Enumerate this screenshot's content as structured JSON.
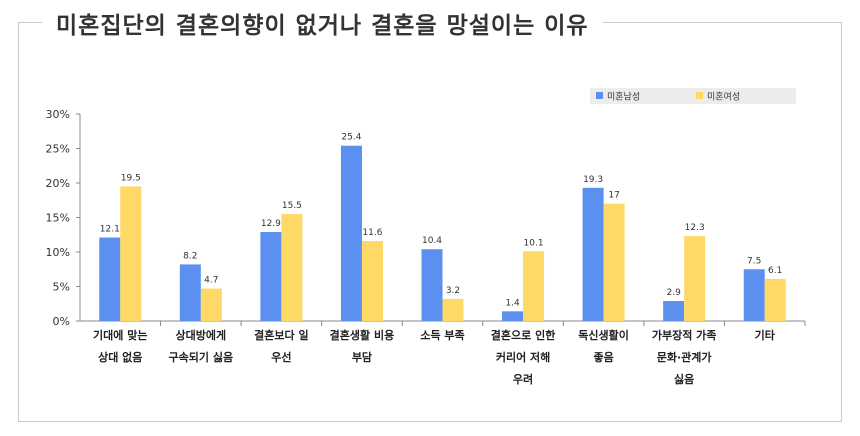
{
  "title": "미혼집단의 결혼의향이 없거나 결혼을 망설이는 이유",
  "chart_data": {
    "type": "bar",
    "title": "미혼집단의 결혼의향이 없거나 결혼을 망설이는 이유",
    "categories": [
      [
        "기대에 맞는",
        "상대 없음"
      ],
      [
        "상대방에게",
        "구속되기 싫음"
      ],
      [
        "결혼보다 일",
        "우선"
      ],
      [
        "결혼생활 비용",
        "부담"
      ],
      [
        "소득 부족"
      ],
      [
        "결혼으로 인한",
        "커리어 저해",
        "우려"
      ],
      [
        "독신생활이",
        "좋음"
      ],
      [
        "가부장적 가족",
        "문화·관계가",
        "싫음"
      ],
      [
        "기타"
      ]
    ],
    "series": [
      {
        "name": "미혼남성",
        "color": "#5b8ff0",
        "values": [
          12.1,
          8.2,
          12.9,
          25.4,
          10.4,
          1.4,
          19.3,
          2.9,
          7.5
        ]
      },
      {
        "name": "미혼여성",
        "color": "#ffd966",
        "values": [
          19.5,
          4.7,
          15.5,
          11.6,
          3.2,
          10.1,
          17,
          12.3,
          6.1
        ]
      }
    ],
    "yticks": [
      "0%",
      "5%",
      "10%",
      "15%",
      "20%",
      "25%",
      "30%"
    ],
    "ylim": [
      0,
      30
    ],
    "xlabel": "",
    "ylabel": "",
    "legend_position": "top-right",
    "grid": false
  }
}
